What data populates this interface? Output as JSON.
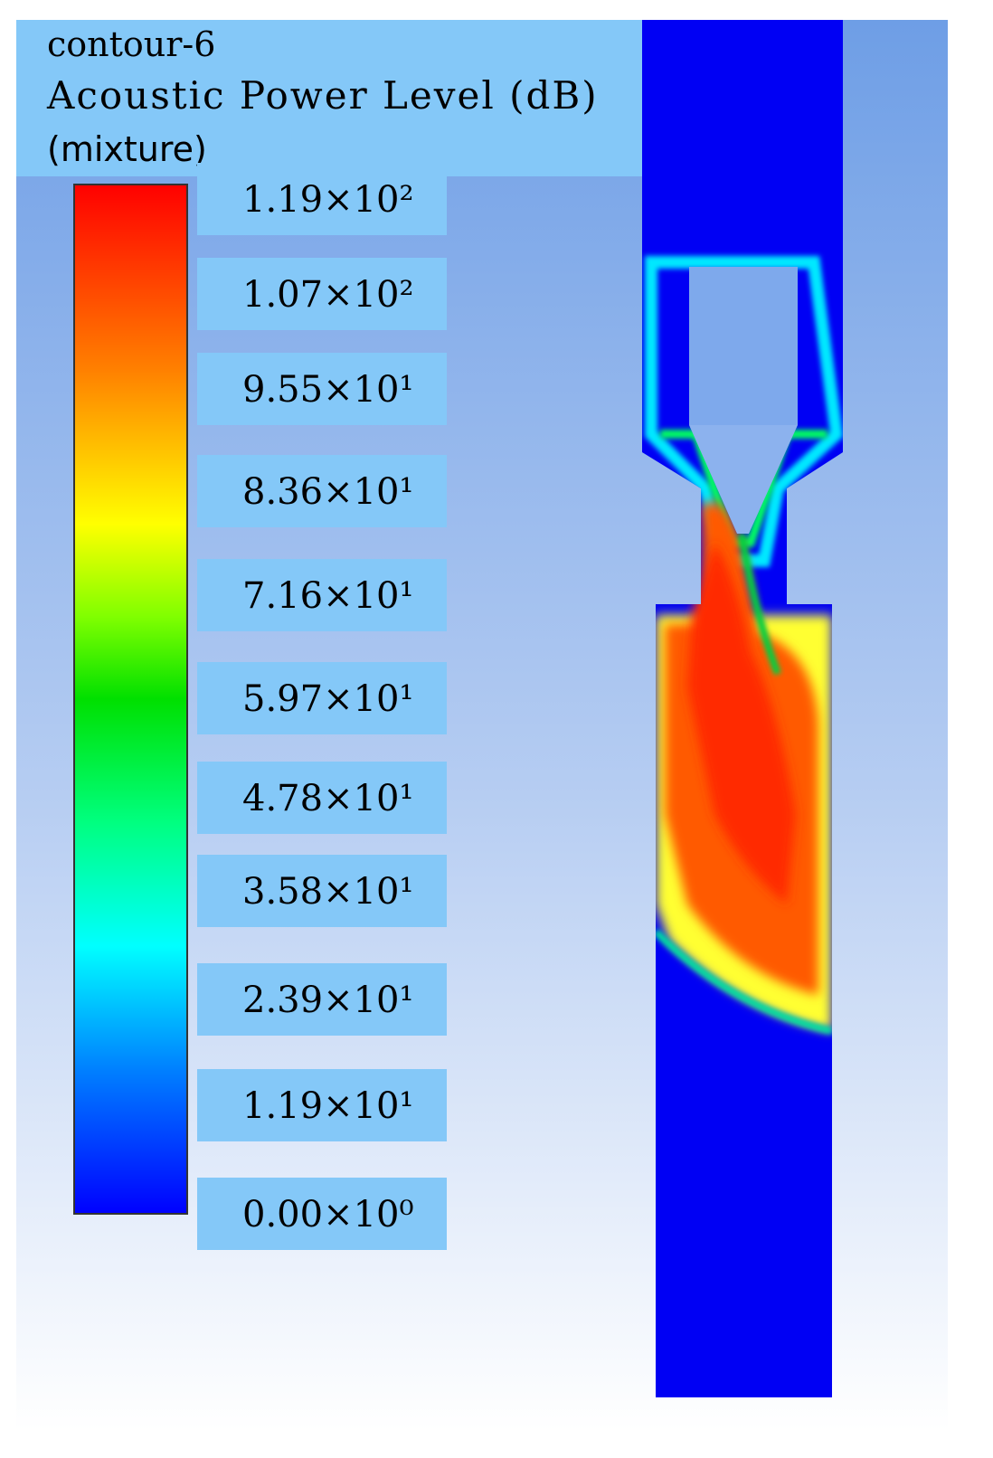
{
  "header": {
    "lines": [
      "contour-6",
      "Acoustic Power Level (dB)",
      "(mixture)"
    ]
  },
  "legend": {
    "labels": [
      "1.19×10²",
      "1.07×10²",
      "9.55×10¹",
      "8.36×10¹",
      "7.16×10¹",
      "5.97×10¹",
      "4.78×10¹",
      "3.58×10¹",
      "2.39×10¹",
      "1.19×10¹",
      "0.00×10⁰"
    ]
  }
}
